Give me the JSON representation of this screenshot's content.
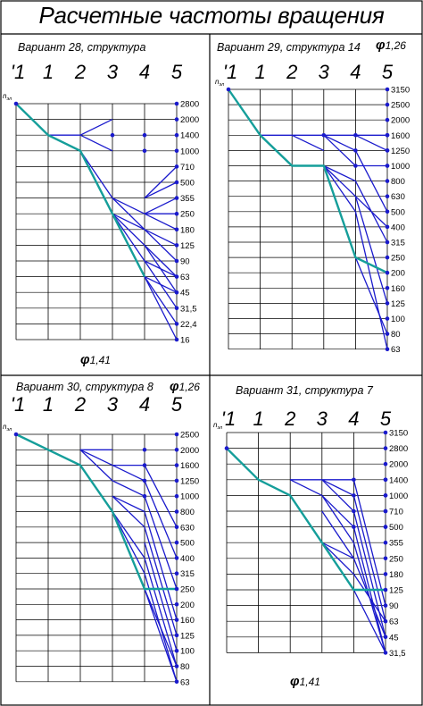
{
  "title": "Расчетные частоты вращения",
  "panels": [
    {
      "id": "p28",
      "title": "Вариант 28, структура",
      "phi": "1,41",
      "axis_symbol": "n",
      "axis_subscript": "эл",
      "shafts": [
        "'1",
        "1",
        "2",
        "3",
        "4",
        "5"
      ],
      "speeds": [
        "2800",
        "2000",
        "1400",
        "1000",
        "710",
        "500",
        "355",
        "250",
        "180",
        "125",
        "90",
        "63",
        "45",
        "31,5",
        "22,4",
        "16"
      ]
    },
    {
      "id": "p29",
      "title": "Вариант 29, структура 14",
      "phi": "1,26",
      "axis_symbol": "n",
      "axis_subscript": "эл",
      "shafts": [
        "'1",
        "1",
        "2",
        "3",
        "4",
        "5"
      ],
      "speeds": [
        "3150",
        "2500",
        "2000",
        "1600",
        "1250",
        "1000",
        "800",
        "630",
        "500",
        "400",
        "315",
        "250",
        "200",
        "160",
        "125",
        "100",
        "80",
        "63"
      ]
    },
    {
      "id": "p30",
      "title": "Вариант 30, структура 8",
      "phi": "1,26",
      "axis_symbol": "n",
      "axis_subscript": "эл",
      "shafts": [
        "'1",
        "1",
        "2",
        "3",
        "4",
        "5"
      ],
      "speeds": [
        "2500",
        "2000",
        "1600",
        "1250",
        "1000",
        "800",
        "630",
        "500",
        "400",
        "315",
        "250",
        "200",
        "160",
        "125",
        "100",
        "80",
        "63"
      ]
    },
    {
      "id": "p31",
      "title": "Вариант 31, структура 7",
      "phi": "1,41",
      "axis_symbol": "n",
      "axis_subscript": "эл",
      "shafts": [
        "'1",
        "1",
        "2",
        "3",
        "4",
        "5"
      ],
      "speeds": [
        "3150",
        "2800",
        "2000",
        "1400",
        "1000",
        "710",
        "500",
        "355",
        "250",
        "180",
        "125",
        "90",
        "63",
        "45",
        "31,5"
      ]
    }
  ],
  "colors": {
    "grid": "#000000",
    "ray": "#1a1acc",
    "path": "#159e9a"
  }
}
